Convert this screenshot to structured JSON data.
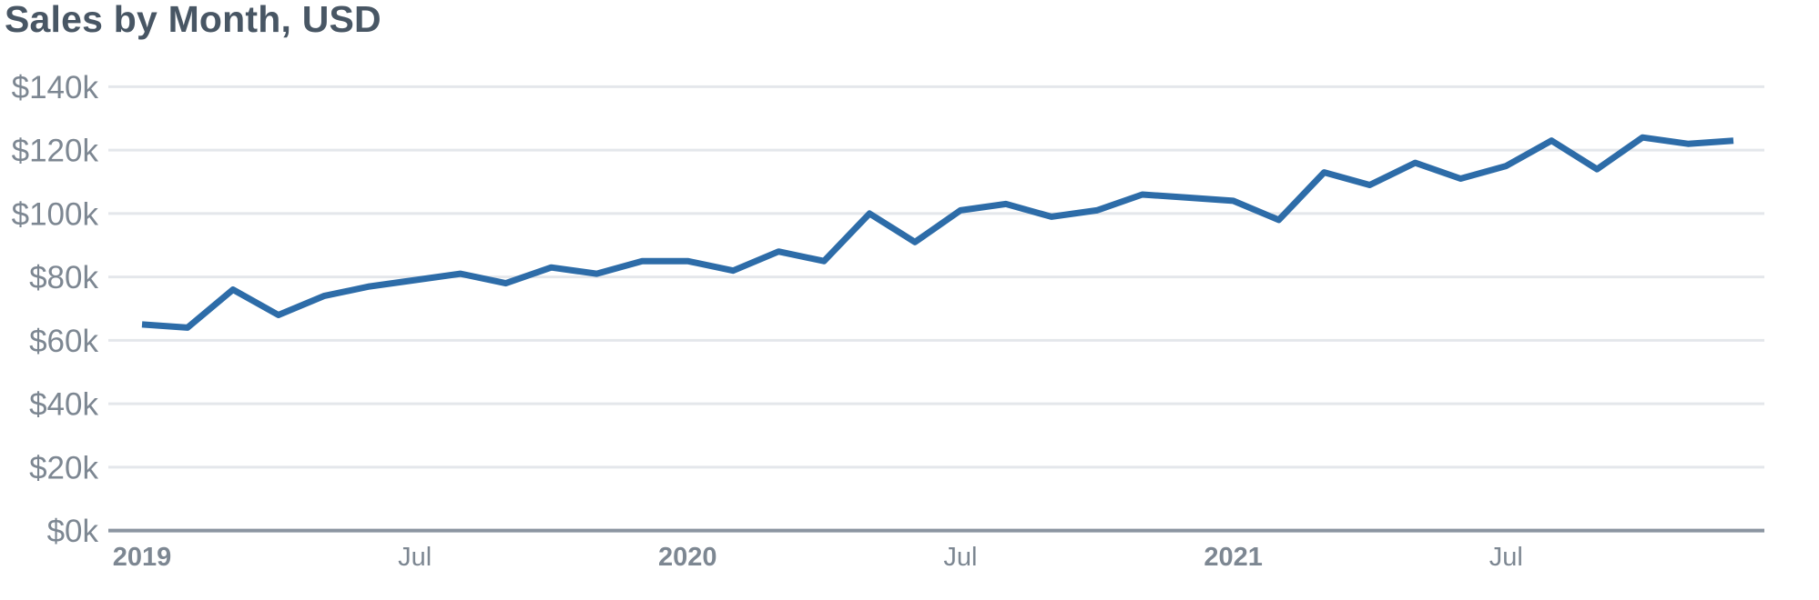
{
  "header": {
    "title": "Sales by Month, USD"
  },
  "colors": {
    "line": "#2d6ca8",
    "grid": "#e4e7eb",
    "axis": "#8b95a1",
    "tick_label": "#7d8792",
    "title": "#485664",
    "background": "#ffffff"
  },
  "chart_data": {
    "type": "line",
    "title": "Sales by Month, USD",
    "value_unit": "USD thousands (k)",
    "x": [
      "Jan 2019",
      "Feb 2019",
      "Mar 2019",
      "Apr 2019",
      "May 2019",
      "Jun 2019",
      "Jul 2019",
      "Aug 2019",
      "Sep 2019",
      "Oct 2019",
      "Nov 2019",
      "Dec 2019",
      "Jan 2020",
      "Feb 2020",
      "Mar 2020",
      "Apr 2020",
      "May 2020",
      "Jun 2020",
      "Jul 2020",
      "Aug 2020",
      "Sep 2020",
      "Oct 2020",
      "Nov 2020",
      "Dec 2020",
      "Jan 2021",
      "Feb 2021",
      "Mar 2021",
      "Apr 2021",
      "May 2021",
      "Jun 2021",
      "Jul 2021",
      "Aug 2021",
      "Sep 2021",
      "Oct 2021",
      "Nov 2021",
      "Dec 2021"
    ],
    "values": [
      65,
      64,
      76,
      68,
      74,
      77,
      79,
      81,
      78,
      83,
      81,
      85,
      85,
      82,
      88,
      85,
      100,
      91,
      101,
      103,
      99,
      101,
      106,
      105,
      104,
      98,
      113,
      109,
      116,
      111,
      115,
      123,
      114,
      124,
      122,
      123
    ],
    "ylim": [
      0,
      140
    ],
    "grid": "horizontal",
    "legend": "none",
    "y_ticks": [
      {
        "label": "$140k",
        "value": 140
      },
      {
        "label": "$120k",
        "value": 120
      },
      {
        "label": "$100k",
        "value": 100
      },
      {
        "label": "$80k",
        "value": 80
      },
      {
        "label": "$60k",
        "value": 60
      },
      {
        "label": "$40k",
        "value": 40
      },
      {
        "label": "$20k",
        "value": 20
      },
      {
        "label": "$0k",
        "value": 0
      }
    ],
    "x_ticks": [
      {
        "label": "2019",
        "month_index": 0,
        "bold": true
      },
      {
        "label": "Jul",
        "month_index": 6,
        "bold": false
      },
      {
        "label": "2020",
        "month_index": 12,
        "bold": true
      },
      {
        "label": "Jul",
        "month_index": 18,
        "bold": false
      },
      {
        "label": "2021",
        "month_index": 24,
        "bold": true
      },
      {
        "label": "Jul",
        "month_index": 30,
        "bold": false
      }
    ]
  }
}
